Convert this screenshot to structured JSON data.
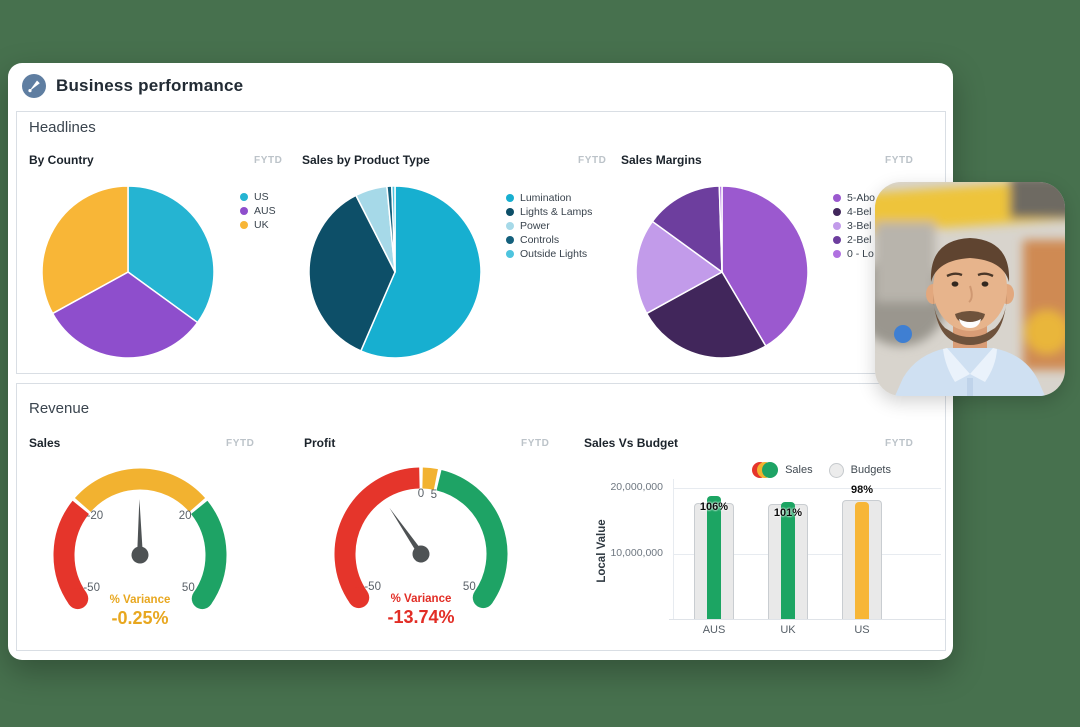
{
  "header": {
    "title": "Business performance",
    "icon": "gauge-icon"
  },
  "sections": {
    "headlines": {
      "title": "Headlines"
    },
    "revenue": {
      "title": "Revenue"
    }
  },
  "chart_data": [
    {
      "id": "by_country",
      "type": "pie",
      "title": "By Country",
      "period": "FYTD",
      "legend_position": "right",
      "slices": [
        {
          "label": "US",
          "value": 35,
          "color": "#25b4d2"
        },
        {
          "label": "AUS",
          "value": 32,
          "color": "#8e4ecc"
        },
        {
          "label": "UK",
          "value": 33,
          "color": "#f8b637"
        }
      ]
    },
    {
      "id": "sales_by_product_type",
      "type": "pie",
      "title": "Sales by Product Type",
      "period": "FYTD",
      "legend_position": "right",
      "slices": [
        {
          "label": "Lumination",
          "value": 56.5,
          "color": "#17afd0"
        },
        {
          "label": "Lights & Lamps",
          "value": 36.0,
          "color": "#0d4f68"
        },
        {
          "label": "Power",
          "value": 6.0,
          "color": "#a6d9e8"
        },
        {
          "label": "Controls",
          "value": 0.9,
          "color": "#14607c"
        },
        {
          "label": "Outside Lights",
          "value": 0.6,
          "color": "#4ec4de"
        }
      ]
    },
    {
      "id": "sales_margins",
      "type": "pie",
      "title": "Sales Margins",
      "period": "FYTD",
      "legend_position": "right",
      "slices": [
        {
          "label": "5-Abo",
          "value": 41.5,
          "color": "#9b59cf"
        },
        {
          "label": "4-Bel",
          "value": 25.5,
          "color": "#41265b"
        },
        {
          "label": "3-Bel",
          "value": 18.0,
          "color": "#c29bea"
        },
        {
          "label": "2-Bel",
          "value": 14.5,
          "color": "#6d3e9e"
        },
        {
          "label": "0 - Lo",
          "value": 0.5,
          "color": "#b071e0"
        }
      ]
    },
    {
      "id": "sales_gauge",
      "type": "gauge",
      "title": "Sales",
      "period": "FYTD",
      "min": -50,
      "max": 50,
      "value": -0.25,
      "segments": [
        {
          "from": -50,
          "to": -20,
          "color": "#e5352b"
        },
        {
          "from": -20,
          "to": 20,
          "color": "#f2b230"
        },
        {
          "from": 20,
          "to": 50,
          "color": "#1ea365"
        }
      ],
      "ticks": [
        {
          "value": -20,
          "label": "-20"
        },
        {
          "value": 20,
          "label": "20"
        },
        {
          "value": -50,
          "label": "-50"
        },
        {
          "value": 50,
          "label": "50"
        }
      ],
      "label": "% Variance",
      "display": "-0.25%",
      "accent": "#e8a71f"
    },
    {
      "id": "profit_gauge",
      "type": "gauge",
      "title": "Profit",
      "period": "FYTD",
      "min": -50,
      "max": 50,
      "value": -13.74,
      "segments": [
        {
          "from": -50,
          "to": 0,
          "color": "#e5352b"
        },
        {
          "from": 0,
          "to": 5,
          "color": "#f2b230"
        },
        {
          "from": 5,
          "to": 50,
          "color": "#1ea365"
        }
      ],
      "ticks": [
        {
          "value": 0,
          "label": "0"
        },
        {
          "value": 5,
          "label": "5"
        },
        {
          "value": -50,
          "label": "-50"
        },
        {
          "value": 50,
          "label": "50"
        }
      ],
      "label": "% Variance",
      "display": "-13.74%",
      "accent": "#e22d25"
    },
    {
      "id": "sales_vs_budget",
      "type": "bar",
      "title": "Sales Vs Budget",
      "period": "FYTD",
      "ylabel": "Local Value",
      "ylim": [
        0,
        21500000
      ],
      "yticks": [
        {
          "value": 20000000,
          "label": "20,000,000"
        },
        {
          "value": 10000000,
          "label": "10,000,000"
        }
      ],
      "categories": [
        "AUS",
        "UK",
        "US"
      ],
      "series": [
        {
          "name": "Budgets",
          "values": [
            17800000,
            17700000,
            18300000
          ],
          "colors": [
            "#e9e9e9",
            "#e9e9e9",
            "#e9e9e9"
          ]
        },
        {
          "name": "Sales",
          "values": [
            18900000,
            17900000,
            17900000
          ],
          "colors": [
            "#1ca563",
            "#1ca563",
            "#f7b637"
          ]
        }
      ],
      "bar_labels": [
        "106%",
        "101%",
        "98%"
      ],
      "legend": {
        "sales_label": "Sales",
        "budgets_label": "Budgets",
        "sales_icon_colors": [
          "#e5352b",
          "#f2b230",
          "#1ea365"
        ],
        "budgets_icon_color": "#ececec"
      }
    }
  ]
}
